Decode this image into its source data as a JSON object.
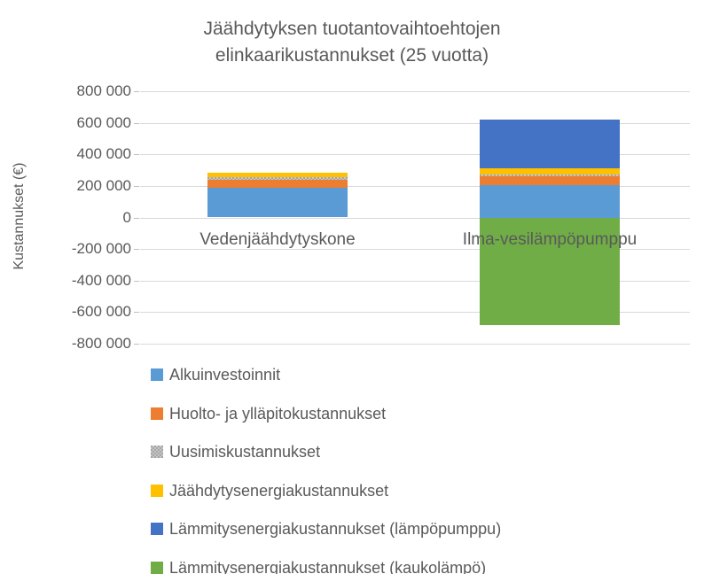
{
  "chart_data": {
    "type": "bar",
    "stacked": true,
    "title": "Jäähdytyksen tuotantovaihtoehtojen elinkaarikustannukset (25 vuotta)",
    "ylabel": "Kustannukset (€)",
    "xlabel": "",
    "categories": [
      "Vedenjäähdytyskone",
      "Ilma-vesilämpöpumppu"
    ],
    "series": [
      {
        "name": "Alkuinvestoinnit",
        "color": "#5B9BD5",
        "pattern": false,
        "values": [
          190000,
          205000
        ]
      },
      {
        "name": "Huolto- ja ylläpitokustannukset",
        "color": "#ED7D31",
        "pattern": false,
        "values": [
          50000,
          55000
        ]
      },
      {
        "name": "Uusimiskustannukset",
        "color": "#A5A5A5",
        "pattern": true,
        "values": [
          15000,
          10000
        ]
      },
      {
        "name": "Jäähdytysenergiakustannukset",
        "color": "#FFC000",
        "pattern": false,
        "values": [
          30000,
          40000
        ]
      },
      {
        "name": "Lämmitysenergiakustannukset (lämpöpumppu)",
        "color": "#4472C4",
        "pattern": false,
        "values": [
          0,
          310000
        ]
      },
      {
        "name": "Lämmitysenergiakustannukset (kaukolämpö)",
        "color": "#70AD47",
        "pattern": false,
        "values": [
          0,
          -680000
        ]
      }
    ],
    "ylim": [
      -800000,
      800000
    ],
    "ytick_step": 200000,
    "ytick_labels": [
      "800 000",
      "600 000",
      "400 000",
      "200 000",
      "0",
      "-200 000",
      "-400 000",
      "-600 000",
      "-800 000"
    ],
    "grid": true,
    "legend_position": "bottom-left",
    "colors": {
      "text": "#595959",
      "gridline": "#D9D9D9",
      "background": "#FFFFFF"
    }
  }
}
